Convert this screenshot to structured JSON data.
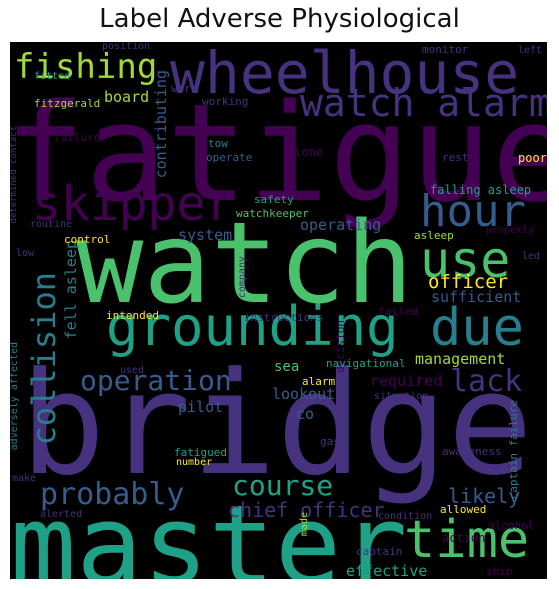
{
  "title": "Label Adverse Physiological",
  "words": {
    "fatigue": "fatigue",
    "watch": "watch",
    "bridge": "bridge",
    "master": "master",
    "wheelhouse": "wheelhouse",
    "watch_alarm": "watch alarm",
    "hour": "hour",
    "skipper": "skipper",
    "fishing": "fishing",
    "grounding": "grounding",
    "due": "due",
    "use": "use",
    "time": "time",
    "collision": "collision",
    "operation": "operation",
    "lack": "lack",
    "probably": "probably",
    "course": "course",
    "chief_officer": "chief officer",
    "likely": "likely",
    "officer": "officer",
    "sufficient": "sufficient",
    "management": "management",
    "required": "required",
    "lookout": "lookout",
    "pilot": "pilot",
    "co": "co",
    "effective": "effective",
    "system": "system",
    "operating": "operating",
    "fell_asleep": "fell asleep",
    "contributing": "contributing",
    "falling_asleep": "falling asleep",
    "sea": "sea",
    "safety": "safety",
    "watchkeeper": "watchkeeper",
    "board": "board",
    "working": "working",
    "work": "work",
    "fitzgerald": "fitzgerald",
    "failure": "failure",
    "tow": "tow",
    "operate": "operate",
    "alone": "alone",
    "rest": "rest",
    "poor": "poor",
    "position": "position",
    "monitor": "monitor",
    "left": "left",
    "fitted": "fitted",
    "determined_contact": "determined contact",
    "routine": "routine",
    "control": "control",
    "low": "low",
    "asleep": "asleep",
    "properly": "properly",
    "led": "led",
    "company": "company",
    "decision": "decision",
    "intended": "intended",
    "instructions": "instructions",
    "failed": "failed",
    "navigational": "navigational",
    "used": "used",
    "alarm": "alarm",
    "situation": "situation",
    "adversely_affected": "adversely affected",
    "gas": "gas",
    "fatigued": "fatigued",
    "number": "number",
    "captain_failure": "captain failure",
    "awareness": "awareness",
    "make": "make",
    "alerted": "alerted",
    "condition": "condition",
    "allowed": "allowed",
    "action": "action",
    "alcohol": "alcohol",
    "made": "made",
    "captain": "captain",
    "ship": "ship"
  },
  "colors": {
    "background": "#000000",
    "palette": [
      "#440154",
      "#46327e",
      "#365c8d",
      "#277f8e",
      "#1fa187",
      "#4ac16d",
      "#a0da39",
      "#fde725"
    ]
  }
}
